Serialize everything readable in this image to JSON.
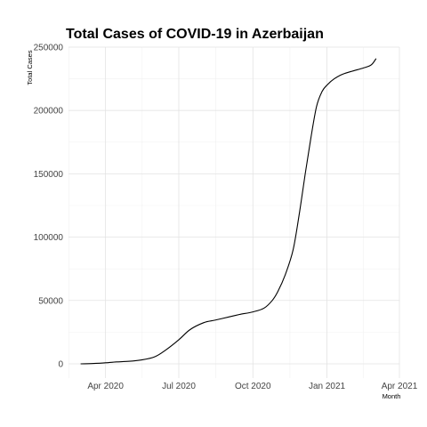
{
  "chart_data": {
    "type": "line",
    "title": "Total Cases of COVID-19 in Azerbaijan",
    "xlabel": "Month",
    "ylabel": "Total Cases",
    "x_ticks": [
      "Apr 2020",
      "Jul 2020",
      "Oct 2020",
      "Jan 2021",
      "Apr 2021"
    ],
    "y_ticks": [
      "0",
      "50000",
      "100000",
      "150000",
      "200000",
      "250000"
    ],
    "ylim": [
      0,
      250000
    ],
    "xlim": [
      "2020-02-15",
      "2021-04-01"
    ],
    "grid": true,
    "series": [
      {
        "x": [
          "2020-03-01",
          "2020-03-15",
          "2020-04-01",
          "2020-04-15",
          "2020-05-01",
          "2020-05-15",
          "2020-06-01",
          "2020-06-15",
          "2020-07-01",
          "2020-07-15",
          "2020-08-01",
          "2020-08-15",
          "2020-09-01",
          "2020-09-15",
          "2020-10-01",
          "2020-10-15",
          "2020-10-25",
          "2020-11-01",
          "2020-11-10",
          "2020-11-20",
          "2020-11-28",
          "2020-12-05",
          "2020-12-12",
          "2020-12-19",
          "2020-12-26",
          "2021-01-01",
          "2021-01-10",
          "2021-01-20",
          "2021-02-01",
          "2021-02-15",
          "2021-02-25",
          "2021-03-03"
        ],
        "values": [
          0,
          200,
          800,
          1500,
          2000,
          3000,
          5500,
          11000,
          19000,
          27000,
          32500,
          34500,
          37000,
          39000,
          41000,
          44000,
          50000,
          57000,
          70000,
          90000,
          120000,
          150000,
          178000,
          203000,
          215000,
          220000,
          225000,
          228500,
          231000,
          233500,
          236000,
          241000
        ]
      }
    ]
  }
}
